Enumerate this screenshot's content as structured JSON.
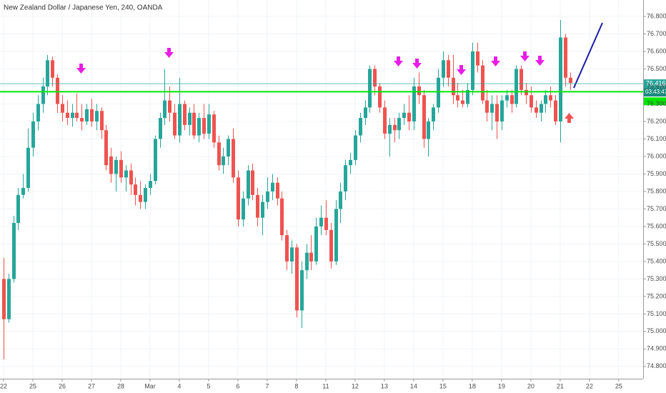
{
  "chart_data": {
    "type": "candlestick",
    "title": "New Zealand Dollar / Japanese Yen, 240, OANDA",
    "up_color": "#26a69a",
    "down_color": "#ef5350",
    "open": [
      75.3,
      75.07,
      75.3,
      75.62,
      75.78,
      75.82,
      76.05,
      76.2,
      76.3,
      76.4,
      76.55,
      76.45,
      76.3,
      76.25,
      76.22,
      76.25,
      76.22,
      76.2,
      76.27,
      76.2,
      76.26,
      76.15,
      76.0,
      75.9,
      75.98,
      75.88,
      75.92,
      75.84,
      75.78,
      75.74,
      75.82,
      75.86,
      76.1,
      76.22,
      76.32,
      76.25,
      76.12,
      76.3,
      76.18,
      76.25,
      76.12,
      76.22,
      76.13,
      76.24,
      76.08,
      75.95,
      76.0,
      76.1,
      75.88,
      75.64,
      75.76,
      75.92,
      75.78,
      75.65,
      75.74,
      75.8,
      75.85,
      75.76,
      75.55,
      75.4,
      75.48,
      75.12,
      75.35,
      75.45,
      75.4,
      75.6,
      75.65,
      75.58,
      75.4,
      75.7,
      75.8,
      75.95,
      75.98,
      76.12,
      76.22,
      76.28,
      76.5,
      76.4,
      76.28,
      76.13,
      76.18,
      76.15,
      76.22,
      76.25,
      76.2,
      76.4,
      76.35,
      76.1,
      76.2,
      76.28,
      76.45,
      76.55,
      76.45,
      76.35,
      76.32,
      76.3,
      76.38,
      76.6,
      76.52,
      76.32,
      76.25,
      76.3,
      76.2,
      76.32,
      76.35,
      76.3,
      76.5,
      76.38,
      76.35,
      76.28,
      76.25,
      76.3,
      76.35,
      76.32,
      76.2,
      76.68,
      76.45
    ],
    "high": [
      75.42,
      75.33,
      75.66,
      75.82,
      75.9,
      76.16,
      76.25,
      76.35,
      76.45,
      76.58,
      76.57,
      76.47,
      76.35,
      76.32,
      76.3,
      76.36,
      76.3,
      76.3,
      76.33,
      76.3,
      76.28,
      76.18,
      76.05,
      76.0,
      76.03,
      75.95,
      75.96,
      75.88,
      75.86,
      75.84,
      75.9,
      76.12,
      76.25,
      76.5,
      76.4,
      76.3,
      76.45,
      76.32,
      76.28,
      76.3,
      76.25,
      76.3,
      76.3,
      76.26,
      76.12,
      76.05,
      76.12,
      76.16,
      75.92,
      75.8,
      75.95,
      75.96,
      75.82,
      75.78,
      75.88,
      75.9,
      75.88,
      75.8,
      75.58,
      75.52,
      75.5,
      75.4,
      75.5,
      75.55,
      75.65,
      75.72,
      75.75,
      75.62,
      75.75,
      75.85,
      75.98,
      76.02,
      76.15,
      76.25,
      76.32,
      76.52,
      76.52,
      76.42,
      76.32,
      76.22,
      76.22,
      76.25,
      76.3,
      76.35,
      76.45,
      76.48,
      76.38,
      76.22,
      76.3,
      76.5,
      76.6,
      76.58,
      76.58,
      76.42,
      76.38,
      76.42,
      76.65,
      76.65,
      76.55,
      76.38,
      76.35,
      76.35,
      76.35,
      76.38,
      76.38,
      76.52,
      76.52,
      76.42,
      76.4,
      76.32,
      76.32,
      76.38,
      76.4,
      76.35,
      76.78,
      76.7,
      76.48
    ],
    "low": [
      74.84,
      75.05,
      75.28,
      75.58,
      75.76,
      75.8,
      76.0,
      76.15,
      76.25,
      76.35,
      76.4,
      76.25,
      76.2,
      76.18,
      76.17,
      76.2,
      76.15,
      76.18,
      76.17,
      76.15,
      76.1,
      75.92,
      75.85,
      75.8,
      75.85,
      75.8,
      75.78,
      75.72,
      75.7,
      75.7,
      75.78,
      75.84,
      76.05,
      76.18,
      76.2,
      76.1,
      76.08,
      76.15,
      76.12,
      76.1,
      76.08,
      76.1,
      76.1,
      76.05,
      75.92,
      75.9,
      75.95,
      75.85,
      75.6,
      75.6,
      75.72,
      75.75,
      75.6,
      75.55,
      75.7,
      75.75,
      75.72,
      75.52,
      75.35,
      75.33,
      75.08,
      75.02,
      75.3,
      75.35,
      75.38,
      75.55,
      75.55,
      75.36,
      75.38,
      75.62,
      75.75,
      75.9,
      75.95,
      76.08,
      76.18,
      76.25,
      76.35,
      76.25,
      76.1,
      76.0,
      76.08,
      76.1,
      76.18,
      76.15,
      76.15,
      76.3,
      76.05,
      76.0,
      76.15,
      76.25,
      76.4,
      76.4,
      76.3,
      76.28,
      76.28,
      76.28,
      76.35,
      76.48,
      76.3,
      76.2,
      76.15,
      76.1,
      76.15,
      76.28,
      76.25,
      76.28,
      76.35,
      76.3,
      76.25,
      76.22,
      76.2,
      76.25,
      76.28,
      76.18,
      76.08,
      76.4,
      76.38
    ],
    "close": [
      75.07,
      75.3,
      75.62,
      75.78,
      75.82,
      76.05,
      76.2,
      76.3,
      76.4,
      76.55,
      76.45,
      76.3,
      76.25,
      76.22,
      76.25,
      76.22,
      76.2,
      76.27,
      76.2,
      76.26,
      76.15,
      75.95,
      75.9,
      75.98,
      75.88,
      75.92,
      75.84,
      75.78,
      75.74,
      75.82,
      75.86,
      76.1,
      76.22,
      76.32,
      76.25,
      76.12,
      76.3,
      76.18,
      76.25,
      76.12,
      76.22,
      76.13,
      76.24,
      76.08,
      75.95,
      76.0,
      76.1,
      75.88,
      75.64,
      75.76,
      75.92,
      75.78,
      75.65,
      75.74,
      75.8,
      75.85,
      75.76,
      75.55,
      75.4,
      75.48,
      75.12,
      75.35,
      75.45,
      75.4,
      75.6,
      75.65,
      75.58,
      75.4,
      75.7,
      75.8,
      75.95,
      75.98,
      76.12,
      76.22,
      76.28,
      76.5,
      76.4,
      76.28,
      76.13,
      76.18,
      76.15,
      76.22,
      76.25,
      76.2,
      76.4,
      76.35,
      76.1,
      76.2,
      76.28,
      76.45,
      76.55,
      76.45,
      76.35,
      76.32,
      76.3,
      76.38,
      76.6,
      76.52,
      76.32,
      76.25,
      76.3,
      76.2,
      76.32,
      76.35,
      76.3,
      76.5,
      76.38,
      76.35,
      76.28,
      76.25,
      76.3,
      76.35,
      76.32,
      76.2,
      76.68,
      76.45,
      76.42
    ],
    "xlim": [
      -0.73,
      131
    ],
    "xticks": [
      {
        "value": 0,
        "label": "22"
      },
      {
        "value": 6,
        "label": "25"
      },
      {
        "value": 12,
        "label": "26"
      },
      {
        "value": 18,
        "label": "27"
      },
      {
        "value": 24,
        "label": "28"
      },
      {
        "value": 30,
        "label": "Mar"
      },
      {
        "value": 36,
        "label": "4"
      },
      {
        "value": 42,
        "label": "5"
      },
      {
        "value": 48,
        "label": "6"
      },
      {
        "value": 54,
        "label": "7"
      },
      {
        "value": 60,
        "label": "8"
      },
      {
        "value": 66,
        "label": "11"
      },
      {
        "value": 72,
        "label": "12"
      },
      {
        "value": 78,
        "label": "13"
      },
      {
        "value": 84,
        "label": "14"
      },
      {
        "value": 90,
        "label": "15"
      },
      {
        "value": 96,
        "label": "18"
      },
      {
        "value": 102,
        "label": "19"
      },
      {
        "value": 108,
        "label": "20"
      },
      {
        "value": 114,
        "label": "21"
      },
      {
        "value": 120,
        "label": "22"
      },
      {
        "value": 126,
        "label": "25"
      }
    ],
    "ylim": [
      74.73,
      76.894
    ],
    "yticks": [
      {
        "value": 76.8,
        "label": "76.800"
      },
      {
        "value": 76.7,
        "label": "76.700"
      },
      {
        "value": 76.6,
        "label": "76.600"
      },
      {
        "value": 76.5,
        "label": "76.500"
      },
      {
        "value": 76.4,
        "label": "76.400"
      },
      {
        "value": 76.3,
        "label": "76.300"
      },
      {
        "value": 76.2,
        "label": "76.200"
      },
      {
        "value": 76.1,
        "label": "76.100"
      },
      {
        "value": 76.0,
        "label": "76.000"
      },
      {
        "value": 75.9,
        "label": "75.900"
      },
      {
        "value": 75.8,
        "label": "75.800"
      },
      {
        "value": 75.7,
        "label": "75.700"
      },
      {
        "value": 75.6,
        "label": "75.600"
      },
      {
        "value": 75.5,
        "label": "75.500"
      },
      {
        "value": 75.4,
        "label": "75.400"
      },
      {
        "value": 75.3,
        "label": "75.300"
      },
      {
        "value": 75.2,
        "label": "75.200"
      },
      {
        "value": 75.1,
        "label": "75.100"
      },
      {
        "value": 75.0,
        "label": "75.000"
      },
      {
        "value": 74.9,
        "label": "74.900"
      },
      {
        "value": 74.8,
        "label": "74.800"
      }
    ],
    "last_price": 76.416,
    "countdown": "03:43:47",
    "level": 76.37,
    "level_color": "#00e600"
  }
}
